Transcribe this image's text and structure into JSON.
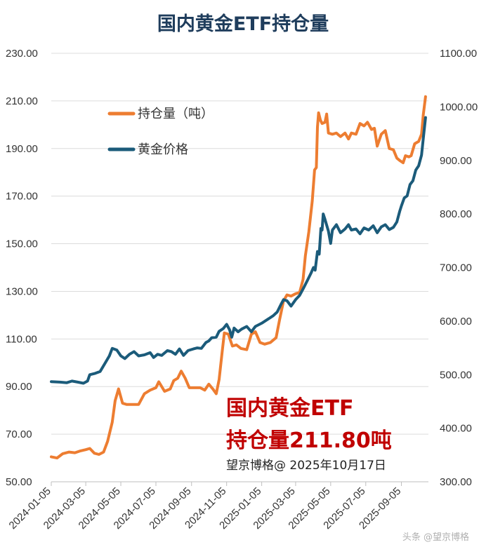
{
  "chart_data": {
    "type": "line",
    "title": "国内黄金ETF持仓量",
    "x_ticks": [
      "2024-01-05",
      "2024-03-05",
      "2024-05-05",
      "2024-07-05",
      "2024-09-05",
      "2024-11-05",
      "2025-01-05",
      "2025-03-05",
      "2025-05-05",
      "2025-07-05",
      "2025-09-05"
    ],
    "y_left": {
      "ticks": [
        "50.00",
        "70.00",
        "90.00",
        "110.00",
        "130.00",
        "150.00",
        "170.00",
        "190.00",
        "210.00",
        "230.00"
      ],
      "range": [
        50,
        230
      ]
    },
    "y_right": {
      "ticks": [
        "300.00",
        "400.00",
        "500.00",
        "600.00",
        "700.00",
        "800.00",
        "900.00",
        "1000.00",
        "1100.00"
      ],
      "range": [
        300,
        1100
      ]
    },
    "grid": "horizontal",
    "legend_position": "top-left",
    "series": [
      {
        "name": "持仓量（吨）",
        "axis": "left",
        "color": "#ed7d31",
        "points": [
          [
            "2024-01-05",
            60.5
          ],
          [
            "2024-01-15",
            60.0
          ],
          [
            "2024-01-25",
            61.8
          ],
          [
            "2024-02-05",
            62.5
          ],
          [
            "2024-02-15",
            62.2
          ],
          [
            "2024-02-25",
            63.0
          ],
          [
            "2024-03-05",
            63.5
          ],
          [
            "2024-03-12",
            64.0
          ],
          [
            "2024-03-20",
            62.0
          ],
          [
            "2024-03-28",
            61.5
          ],
          [
            "2024-04-05",
            62.5
          ],
          [
            "2024-04-12",
            67.0
          ],
          [
            "2024-04-20",
            75.0
          ],
          [
            "2024-04-25",
            84.0
          ],
          [
            "2024-05-01",
            89.0
          ],
          [
            "2024-05-08",
            83.0
          ],
          [
            "2024-05-15",
            82.5
          ],
          [
            "2024-05-25",
            82.5
          ],
          [
            "2024-06-05",
            82.5
          ],
          [
            "2024-06-15",
            87.0
          ],
          [
            "2024-06-25",
            88.5
          ],
          [
            "2024-07-05",
            89.5
          ],
          [
            "2024-07-10",
            92.0
          ],
          [
            "2024-07-20",
            88.0
          ],
          [
            "2024-07-30",
            89.0
          ],
          [
            "2024-08-05",
            92.5
          ],
          [
            "2024-08-12",
            93.5
          ],
          [
            "2024-08-18",
            96.5
          ],
          [
            "2024-08-25",
            93.5
          ],
          [
            "2024-09-01",
            89.5
          ],
          [
            "2024-09-10",
            89.5
          ],
          [
            "2024-09-20",
            89.5
          ],
          [
            "2024-09-28",
            88.5
          ],
          [
            "2024-10-05",
            91.0
          ],
          [
            "2024-10-12",
            89.0
          ],
          [
            "2024-10-18",
            87.0
          ],
          [
            "2024-10-23",
            93.0
          ],
          [
            "2024-10-28",
            104.0
          ],
          [
            "2024-11-01",
            112.5
          ],
          [
            "2024-11-08",
            112.0
          ],
          [
            "2024-11-15",
            107.0
          ],
          [
            "2024-11-22",
            107.5
          ],
          [
            "2024-11-30",
            106.0
          ],
          [
            "2024-12-10",
            105.5
          ],
          [
            "2024-12-18",
            112.0
          ],
          [
            "2024-12-25",
            113.0
          ],
          [
            "2025-01-02",
            108.5
          ],
          [
            "2025-01-10",
            107.8
          ],
          [
            "2025-01-20",
            108.5
          ],
          [
            "2025-01-30",
            110.5
          ],
          [
            "2025-02-05",
            118.0
          ],
          [
            "2025-02-12",
            126.0
          ],
          [
            "2025-02-18",
            128.5
          ],
          [
            "2025-02-25",
            128.0
          ],
          [
            "2025-03-05",
            129.0
          ],
          [
            "2025-03-12",
            129.5
          ],
          [
            "2025-03-18",
            135.0
          ],
          [
            "2025-03-22",
            145.0
          ],
          [
            "2025-03-28",
            155.0
          ],
          [
            "2025-04-03",
            168.0
          ],
          [
            "2025-04-07",
            181.0
          ],
          [
            "2025-04-10",
            182.0
          ],
          [
            "2025-04-12",
            199.0
          ],
          [
            "2025-04-14",
            205.0
          ],
          [
            "2025-04-17",
            202.0
          ],
          [
            "2025-04-20",
            200.5
          ],
          [
            "2025-04-25",
            201.0
          ],
          [
            "2025-04-28",
            204.5
          ],
          [
            "2025-05-01",
            196.5
          ],
          [
            "2025-05-08",
            196.0
          ],
          [
            "2025-05-15",
            196.5
          ],
          [
            "2025-05-22",
            195.0
          ],
          [
            "2025-05-30",
            196.5
          ],
          [
            "2025-06-05",
            194.0
          ],
          [
            "2025-06-10",
            196.5
          ],
          [
            "2025-06-18",
            196.0
          ],
          [
            "2025-06-25",
            200.5
          ],
          [
            "2025-07-02",
            199.5
          ],
          [
            "2025-07-08",
            201.0
          ],
          [
            "2025-07-15",
            198.0
          ],
          [
            "2025-07-20",
            198.5
          ],
          [
            "2025-07-25",
            191.0
          ],
          [
            "2025-08-01",
            196.0
          ],
          [
            "2025-08-08",
            197.5
          ],
          [
            "2025-08-15",
            190.0
          ],
          [
            "2025-08-22",
            189.5
          ],
          [
            "2025-08-28",
            186.0
          ],
          [
            "2025-09-02",
            185.0
          ],
          [
            "2025-09-08",
            184.0
          ],
          [
            "2025-09-12",
            187.0
          ],
          [
            "2025-09-18",
            186.5
          ],
          [
            "2025-09-22",
            187.0
          ],
          [
            "2025-09-28",
            192.0
          ],
          [
            "2025-10-05",
            193.0
          ],
          [
            "2025-10-10",
            196.0
          ],
          [
            "2025-10-13",
            204.0
          ],
          [
            "2025-10-17",
            211.8
          ]
        ]
      },
      {
        "name": "黄金价格",
        "axis": "right",
        "color": "#1b5b7a",
        "points": [
          [
            "2024-01-05",
            487
          ],
          [
            "2024-01-20",
            486
          ],
          [
            "2024-02-01",
            485
          ],
          [
            "2024-02-10",
            488
          ],
          [
            "2024-02-20",
            486
          ],
          [
            "2024-03-01",
            484
          ],
          [
            "2024-03-08",
            488
          ],
          [
            "2024-03-12",
            500
          ],
          [
            "2024-03-20",
            502
          ],
          [
            "2024-03-30",
            506
          ],
          [
            "2024-04-08",
            522
          ],
          [
            "2024-04-15",
            535
          ],
          [
            "2024-04-20",
            549
          ],
          [
            "2024-04-28",
            546
          ],
          [
            "2024-05-05",
            535
          ],
          [
            "2024-05-12",
            530
          ],
          [
            "2024-05-20",
            538
          ],
          [
            "2024-05-28",
            543
          ],
          [
            "2024-06-05",
            535
          ],
          [
            "2024-06-15",
            537
          ],
          [
            "2024-06-25",
            541
          ],
          [
            "2024-07-01",
            532
          ],
          [
            "2024-07-08",
            538
          ],
          [
            "2024-07-15",
            536
          ],
          [
            "2024-07-25",
            545
          ],
          [
            "2024-08-01",
            543
          ],
          [
            "2024-08-08",
            538
          ],
          [
            "2024-08-15",
            548
          ],
          [
            "2024-08-22",
            536
          ],
          [
            "2024-08-30",
            545
          ],
          [
            "2024-09-08",
            548
          ],
          [
            "2024-09-15",
            550
          ],
          [
            "2024-09-22",
            549
          ],
          [
            "2024-09-30",
            560
          ],
          [
            "2024-10-05",
            563
          ],
          [
            "2024-10-10",
            569
          ],
          [
            "2024-10-18",
            570
          ],
          [
            "2024-10-23",
            581
          ],
          [
            "2024-10-30",
            586
          ],
          [
            "2024-11-05",
            594
          ],
          [
            "2024-11-10",
            584
          ],
          [
            "2024-11-14",
            570
          ],
          [
            "2024-11-18",
            587
          ],
          [
            "2024-11-25",
            580
          ],
          [
            "2024-12-01",
            585
          ],
          [
            "2024-12-10",
            590
          ],
          [
            "2024-12-18",
            580
          ],
          [
            "2024-12-25",
            590
          ],
          [
            "2025-01-05",
            596
          ],
          [
            "2025-01-15",
            603
          ],
          [
            "2025-01-25",
            610
          ],
          [
            "2025-02-01",
            617
          ],
          [
            "2025-02-08",
            632
          ],
          [
            "2025-02-12",
            640
          ],
          [
            "2025-02-18",
            638
          ],
          [
            "2025-02-25",
            628
          ],
          [
            "2025-03-05",
            640
          ],
          [
            "2025-03-12",
            648
          ],
          [
            "2025-03-18",
            660
          ],
          [
            "2025-03-25",
            675
          ],
          [
            "2025-04-01",
            690
          ],
          [
            "2025-04-05",
            700
          ],
          [
            "2025-04-08",
            695
          ],
          [
            "2025-04-12",
            730
          ],
          [
            "2025-04-15",
            725
          ],
          [
            "2025-04-18",
            773
          ],
          [
            "2025-04-20",
            770
          ],
          [
            "2025-04-22",
            800
          ],
          [
            "2025-04-25",
            790
          ],
          [
            "2025-05-01",
            768
          ],
          [
            "2025-05-05",
            745
          ],
          [
            "2025-05-08",
            770
          ],
          [
            "2025-05-15",
            780
          ],
          [
            "2025-05-22",
            765
          ],
          [
            "2025-05-30",
            772
          ],
          [
            "2025-06-05",
            780
          ],
          [
            "2025-06-10",
            770
          ],
          [
            "2025-06-18",
            772
          ],
          [
            "2025-06-25",
            763
          ],
          [
            "2025-07-02",
            774
          ],
          [
            "2025-07-10",
            770
          ],
          [
            "2025-07-18",
            778
          ],
          [
            "2025-07-25",
            765
          ],
          [
            "2025-08-01",
            776
          ],
          [
            "2025-08-08",
            780
          ],
          [
            "2025-08-15",
            771
          ],
          [
            "2025-08-22",
            775
          ],
          [
            "2025-08-28",
            785
          ],
          [
            "2025-09-02",
            805
          ],
          [
            "2025-09-05",
            815
          ],
          [
            "2025-09-10",
            830
          ],
          [
            "2025-09-15",
            834
          ],
          [
            "2025-09-20",
            855
          ],
          [
            "2025-09-25",
            862
          ],
          [
            "2025-09-30",
            882
          ],
          [
            "2025-10-05",
            890
          ],
          [
            "2025-10-10",
            910
          ],
          [
            "2025-10-13",
            940
          ],
          [
            "2025-10-17",
            980
          ]
        ]
      }
    ],
    "annotation": {
      "line1": "国内黄金ETF",
      "line2": "持仓量211.80吨",
      "line3": "望京博格@ 2025年10月17日"
    }
  },
  "watermark": "头条 @望京博格"
}
